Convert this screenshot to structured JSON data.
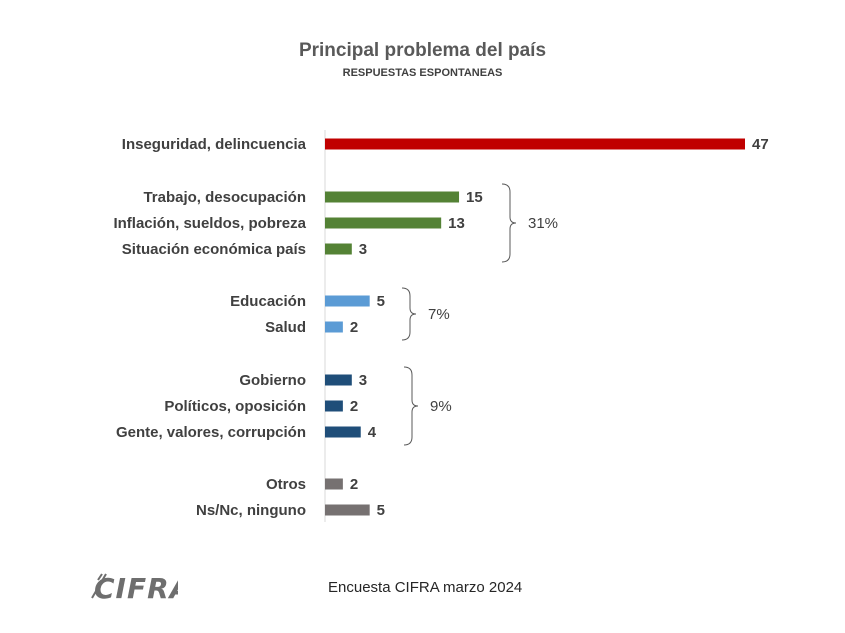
{
  "title": "Principal problema del país",
  "subtitle": "RESPUESTAS ESPONTANEAS",
  "footer": "Encuesta CIFRA marzo 2024",
  "logo_text": "CIFRA",
  "chart_data": {
    "type": "bar",
    "orientation": "horizontal",
    "title": "Principal problema del país",
    "subtitle": "RESPUESTAS ESPONTANEAS",
    "categories": [
      "Inseguridad, delincuencia",
      "Trabajo, desocupación",
      "Inflación, sueldos, pobreza",
      "Situación económica país",
      "Educación",
      "Salud",
      "Gobierno",
      "Políticos, oposición",
      "Gente, valores, corrupción",
      "Otros",
      "Ns/Nc, ninguno"
    ],
    "values": [
      47,
      15,
      13,
      3,
      5,
      2,
      3,
      2,
      4,
      2,
      5
    ],
    "colors": [
      "#c00000",
      "#548235",
      "#548235",
      "#548235",
      "#5b9bd5",
      "#5b9bd5",
      "#1f4e79",
      "#1f4e79",
      "#1f4e79",
      "#767171",
      "#767171"
    ],
    "groups": [
      {
        "label": "31%",
        "start": 1,
        "end": 3
      },
      {
        "label": "7%",
        "start": 4,
        "end": 5
      },
      {
        "label": "9%",
        "start": 6,
        "end": 8
      }
    ],
    "xlim": [
      0,
      47
    ],
    "grid": false,
    "legend": "none"
  }
}
